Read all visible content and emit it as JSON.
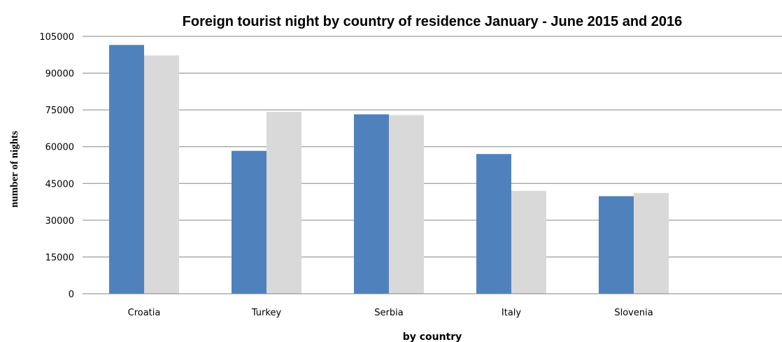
{
  "chart_data": {
    "type": "bar",
    "title": "Foreign tourist night by country of residence January - June 2015 and 2016",
    "xlabel": "by country",
    "ylabel": "number of nights",
    "categories": [
      "Croatia",
      "Turkey",
      "Serbia",
      "Italy",
      "Slovenia"
    ],
    "series": [
      {
        "values": [
          101500,
          58300,
          73200,
          57000,
          39800
        ],
        "color": "#4f81bd"
      },
      {
        "values": [
          97200,
          74200,
          72900,
          42000,
          41100
        ],
        "color": "#d9d9d9"
      }
    ],
    "ylim": [
      0,
      105000
    ],
    "yticks": [
      0,
      15000,
      30000,
      45000,
      60000,
      75000,
      90000,
      105000
    ],
    "grid": true,
    "gridline_color": "#868686",
    "legend": "none"
  }
}
